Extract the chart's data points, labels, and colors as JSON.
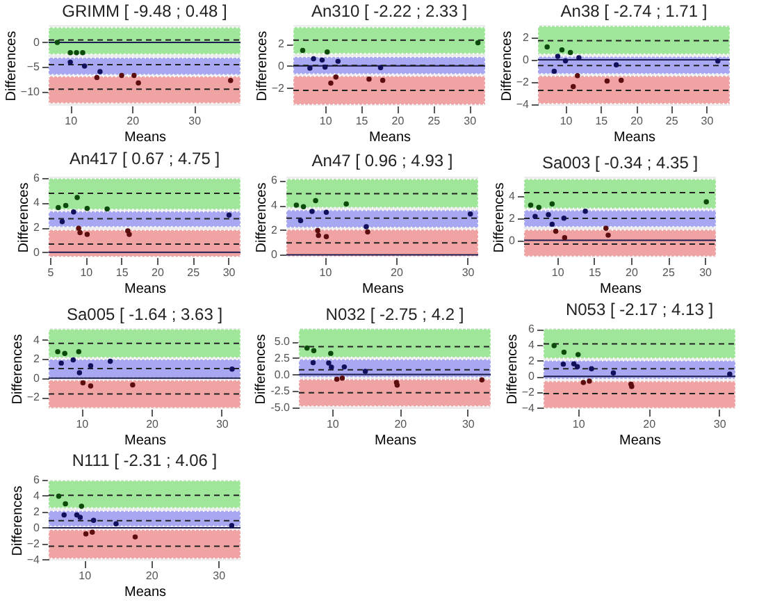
{
  "chart_data": [
    {
      "type": "scatter",
      "title": "GRIMM [ -9.48 ; 0.48 ]",
      "xlabel": "Means",
      "ylabel": "Differences",
      "marker": "circle",
      "xlim": [
        6.5,
        37.5
      ],
      "xticks": [
        10,
        20,
        30
      ],
      "ylim": [
        -12.8,
        3.5
      ],
      "yticks": [
        -10,
        -5,
        0
      ],
      "series": [
        {
          "color": "#0b4a0b",
          "x": [
            7.9,
            10,
            11,
            12
          ],
          "values": [
            0,
            -2.1,
            -2.1,
            -2.1
          ]
        },
        {
          "color": "#10105c",
          "x": [
            10,
            12.3,
            14.8
          ],
          "values": [
            -4.0,
            -4.8,
            -5.9
          ]
        },
        {
          "color": "#5c0e0e",
          "x": [
            14.3,
            18.3,
            20.3,
            21,
            35.9
          ],
          "values": [
            -7.1,
            -6.7,
            -6.7,
            -8.2,
            -7.7
          ]
        }
      ],
      "bands": [
        {
          "axis": "y",
          "from": -2.4,
          "to": 3.0,
          "color": "#9fe69b"
        },
        {
          "axis": "y",
          "from": -6.55,
          "to": -3.1,
          "color": "#a8a8f2"
        },
        {
          "axis": "y",
          "from": -12.3,
          "to": -6.9,
          "color": "#f0a3a3"
        }
      ],
      "ref_lines": [
        {
          "axis": "y",
          "value": 0,
          "color": "#1c1c50",
          "line_style": "solid"
        },
        {
          "axis": "y",
          "value": 0.48,
          "color": "#222222",
          "line_style": "dashed"
        },
        {
          "axis": "y",
          "value": -4.5,
          "color": "#222222",
          "line_style": "dashed"
        },
        {
          "axis": "y",
          "value": -9.48,
          "color": "#222222",
          "line_style": "dashed"
        }
      ]
    },
    {
      "type": "scatter",
      "title": "An310 [ -2.22 ; 2.33 ]",
      "xlabel": "Means",
      "ylabel": "Differences",
      "marker": "circle",
      "xlim": [
        5.6,
        32.2
      ],
      "xticks": [
        10,
        15,
        20,
        25,
        30
      ],
      "ylim": [
        -3.6,
        3.7
      ],
      "yticks": [
        -2,
        0,
        2
      ],
      "series": [
        {
          "color": "#0b4a0b",
          "x": [
            6.9,
            10.3,
            31.2
          ],
          "values": [
            1.4,
            1.26,
            2.1
          ]
        },
        {
          "color": "#10105c",
          "x": [
            7.9,
            8.4,
            9.6,
            10,
            11.8,
            17.7
          ],
          "values": [
            -0.2,
            0.65,
            0.53,
            -0.1,
            0.42,
            -0.15
          ]
        },
        {
          "color": "#5c0e0e",
          "x": [
            10.8,
            11.5,
            16.1,
            18.0
          ],
          "values": [
            -1.56,
            -1.0,
            -1.2,
            -1.3
          ]
        }
      ],
      "bands": [
        {
          "axis": "y",
          "from": 1.1,
          "to": 3.5,
          "color": "#9fe69b"
        },
        {
          "axis": "y",
          "from": -0.73,
          "to": 0.8,
          "color": "#a8a8f2"
        },
        {
          "axis": "y",
          "from": -3.5,
          "to": -0.92,
          "color": "#f0a3a3"
        }
      ],
      "ref_lines": [
        {
          "axis": "y",
          "value": 0,
          "color": "#1c1c50",
          "line_style": "solid"
        },
        {
          "axis": "y",
          "value": 2.33,
          "color": "#222222",
          "line_style": "dashed"
        },
        {
          "axis": "y",
          "value": 0.055,
          "color": "#222222",
          "line_style": "dashed"
        },
        {
          "axis": "y",
          "value": -2.22,
          "color": "#222222",
          "line_style": "dashed"
        }
      ]
    },
    {
      "type": "scatter",
      "title": "An38 [ -2.74 ; 1.71 ]",
      "xlabel": "Means",
      "ylabel": "Differences",
      "marker": "circle",
      "xlim": [
        6.1,
        33.3
      ],
      "xticks": [
        10,
        15,
        20,
        25,
        30
      ],
      "ylim": [
        -4.1,
        3.1
      ],
      "yticks": [
        -4,
        -2,
        0,
        2
      ],
      "series": [
        {
          "color": "#0b4a0b",
          "x": [
            7.4,
            9.5,
            10.7
          ],
          "values": [
            1.15,
            0.88,
            0.65
          ]
        },
        {
          "color": "#10105c",
          "x": [
            8.4,
            8.9,
            10,
            11.9,
            17.2,
            31.6
          ],
          "values": [
            -1.03,
            0.3,
            -0.1,
            0.19,
            -0.46,
            -0.11
          ]
        },
        {
          "color": "#5c0e0e",
          "x": [
            11.1,
            11.7,
            15.9,
            17.9
          ],
          "values": [
            -2.4,
            -1.41,
            -1.9,
            -1.83
          ]
        }
      ],
      "bands": [
        {
          "axis": "y",
          "from": 0.5,
          "to": 3.0,
          "color": "#9fe69b"
        },
        {
          "axis": "y",
          "from": -1.26,
          "to": 0.27,
          "color": "#a8a8f2"
        },
        {
          "axis": "y",
          "from": -3.93,
          "to": -1.45,
          "color": "#f0a3a3"
        }
      ],
      "ref_lines": [
        {
          "axis": "y",
          "value": 0,
          "color": "#1c1c50",
          "line_style": "solid"
        },
        {
          "axis": "y",
          "value": 1.71,
          "color": "#222222",
          "line_style": "dashed"
        },
        {
          "axis": "y",
          "value": -0.515,
          "color": "#222222",
          "line_style": "dashed"
        },
        {
          "axis": "y",
          "value": -2.74,
          "color": "#222222",
          "line_style": "dashed"
        }
      ]
    },
    {
      "type": "scatter",
      "title": "An417 [ 0.67 ; 4.75 ]",
      "xlabel": "Means",
      "ylabel": "Differences",
      "marker": "circle",
      "xlim": [
        4.8,
        31.7
      ],
      "xticks": [
        5,
        10,
        15,
        20,
        25,
        30
      ],
      "ylim": [
        -0.4,
        6.1
      ],
      "yticks": [
        0,
        2,
        4,
        6
      ],
      "series": [
        {
          "color": "#0b4a0b",
          "x": [
            6.15,
            7.2,
            8.8,
            10.2,
            13.0
          ],
          "values": [
            3.6,
            3.78,
            4.42,
            3.53,
            3.5
          ]
        },
        {
          "color": "#10105c",
          "x": [
            6.7,
            8.3,
            30.1
          ],
          "values": [
            2.47,
            3.25,
            3.0
          ]
        },
        {
          "color": "#5c0e0e",
          "x": [
            9.0,
            9.2,
            10.2,
            15.9,
            16.1
          ],
          "values": [
            1.94,
            1.59,
            1.45,
            1.73,
            1.45
          ]
        }
      ],
      "bands": [
        {
          "axis": "y",
          "from": 3.45,
          "to": 5.94,
          "color": "#9fe69b"
        },
        {
          "axis": "y",
          "from": 2.05,
          "to": 3.3,
          "color": "#a8a8f2"
        },
        {
          "axis": "y",
          "from": -0.35,
          "to": 1.8,
          "color": "#f0a3a3"
        }
      ],
      "ref_lines": [
        {
          "axis": "y",
          "value": 0,
          "color": "#1c1c50",
          "line_style": "solid"
        },
        {
          "axis": "y",
          "value": 4.75,
          "color": "#222222",
          "line_style": "dashed"
        },
        {
          "axis": "y",
          "value": 2.71,
          "color": "#222222",
          "line_style": "dashed"
        },
        {
          "axis": "y",
          "value": 0.67,
          "color": "#222222",
          "line_style": "dashed"
        }
      ]
    },
    {
      "type": "scatter",
      "title": "An47 [ 0.96 ; 4.93 ]",
      "xlabel": "Means",
      "ylabel": "Differences",
      "marker": "circle",
      "xlim": [
        4.6,
        31.5
      ],
      "xticks": [
        10,
        20,
        30
      ],
      "ylim": [
        -0.2,
        6.3
      ],
      "yticks": [
        0,
        2,
        4,
        6
      ],
      "series": [
        {
          "color": "#0b4a0b",
          "x": [
            6.0,
            7.0,
            8.7,
            13.0
          ],
          "values": [
            4.0,
            3.88,
            4.37,
            4.1
          ]
        },
        {
          "color": "#10105c",
          "x": [
            6.6,
            8.2,
            10.2,
            15.8,
            30.4
          ],
          "values": [
            2.76,
            3.5,
            3.43,
            2.27,
            3.29
          ]
        },
        {
          "color": "#5c0e0e",
          "x": [
            9.0,
            9.1,
            10.2,
            16.0
          ],
          "values": [
            1.96,
            1.57,
            1.47,
            1.85
          ]
        }
      ],
      "bands": [
        {
          "axis": "y",
          "from": 3.8,
          "to": 6.1,
          "color": "#9fe69b"
        },
        {
          "axis": "y",
          "from": 2.2,
          "to": 3.6,
          "color": "#a8a8f2"
        },
        {
          "axis": "y",
          "from": -0.1,
          "to": 2.03,
          "color": "#f0a3a3"
        }
      ],
      "ref_lines": [
        {
          "axis": "y",
          "value": 0,
          "color": "#1c1c50",
          "line_style": "solid"
        },
        {
          "axis": "y",
          "value": 4.93,
          "color": "#222222",
          "line_style": "dashed"
        },
        {
          "axis": "y",
          "value": 2.945,
          "color": "#222222",
          "line_style": "dashed"
        },
        {
          "axis": "y",
          "value": 0.96,
          "color": "#222222",
          "line_style": "dashed"
        }
      ]
    },
    {
      "type": "scatter",
      "title": "Sa003 [ -0.34 ; 4.35 ]",
      "xlabel": "Means",
      "ylabel": "Differences",
      "marker": "circle",
      "xlim": [
        5.5,
        31.5
      ],
      "xticks": [
        10,
        15,
        20,
        25,
        30
      ],
      "ylim": [
        -1.55,
        5.8
      ],
      "yticks": [
        0,
        2,
        4
      ],
      "series": [
        {
          "color": "#0b4a0b",
          "x": [
            6.4,
            7.5,
            9.3,
            30.2
          ],
          "values": [
            3.2,
            3.0,
            3.32,
            3.5
          ]
        },
        {
          "color": "#10105c",
          "x": [
            7.0,
            8.8,
            9.3,
            10.9,
            13.8
          ],
          "values": [
            2.17,
            2.33,
            1.46,
            2.02,
            2.65
          ]
        },
        {
          "color": "#5c0e0e",
          "x": [
            9.8,
            11.0,
            16.6,
            16.9
          ],
          "values": [
            0.83,
            0.24,
            1.1,
            0.47
          ]
        }
      ],
      "bands": [
        {
          "axis": "y",
          "from": 2.9,
          "to": 5.57,
          "color": "#9fe69b"
        },
        {
          "axis": "y",
          "from": 1.23,
          "to": 2.73,
          "color": "#a8a8f2"
        },
        {
          "axis": "y",
          "from": -1.46,
          "to": 0.95,
          "color": "#f0a3a3"
        }
      ],
      "ref_lines": [
        {
          "axis": "y",
          "value": 0,
          "color": "#1c1c50",
          "line_style": "solid"
        },
        {
          "axis": "y",
          "value": 4.35,
          "color": "#222222",
          "line_style": "dashed"
        },
        {
          "axis": "y",
          "value": 2.005,
          "color": "#222222",
          "line_style": "dashed"
        },
        {
          "axis": "y",
          "value": -0.34,
          "color": "#222222",
          "line_style": "dashed"
        }
      ]
    },
    {
      "type": "scatter",
      "title": "Sa005 [ -1.64 ; 3.63 ]",
      "xlabel": "Means",
      "ylabel": "Differences",
      "marker": "circle",
      "xlim": [
        5.3,
        32.7
      ],
      "xticks": [
        10,
        20,
        30
      ],
      "ylim": [
        -3.2,
        5.2
      ],
      "yticks": [
        -2,
        0,
        2,
        4
      ],
      "series": [
        {
          "color": "#0b4a0b",
          "x": [
            6.6,
            7.6,
            9.6
          ],
          "values": [
            2.76,
            2.57,
            2.76
          ]
        },
        {
          "color": "#10105c",
          "x": [
            7.1,
            8.8,
            9.7,
            11.3,
            14.1,
            31.5
          ],
          "values": [
            1.57,
            1.9,
            0.57,
            1.29,
            1.76,
            0.95
          ]
        },
        {
          "color": "#5c0e0e",
          "x": [
            10.2,
            11.3,
            17.3
          ],
          "values": [
            -0.48,
            -0.81,
            -0.71
          ]
        }
      ],
      "bands": [
        {
          "axis": "y",
          "from": 2.14,
          "to": 5.1,
          "color": "#9fe69b"
        },
        {
          "axis": "y",
          "from": 0,
          "to": 1.95,
          "color": "#a8a8f2"
        },
        {
          "axis": "y",
          "from": -3.1,
          "to": -0.24,
          "color": "#f0a3a3"
        }
      ],
      "ref_lines": [
        {
          "axis": "y",
          "value": 0,
          "color": "#1c1c50",
          "line_style": "solid"
        },
        {
          "axis": "y",
          "value": 3.63,
          "color": "#222222",
          "line_style": "dashed"
        },
        {
          "axis": "y",
          "value": 0.995,
          "color": "#222222",
          "line_style": "dashed"
        },
        {
          "axis": "y",
          "value": -1.64,
          "color": "#222222",
          "line_style": "dashed"
        }
      ]
    },
    {
      "type": "scatter",
      "title": "N032 [ -2.75 ; 4.2 ]",
      "xlabel": "Means",
      "ylabel": "Differences",
      "marker": "circle",
      "xlim": [
        5.1,
        33.4
      ],
      "xticks": [
        10,
        20,
        30
      ],
      "ylim": [
        -5.2,
        7.0
      ],
      "yticks": [
        {
          "value": -5,
          "label": "-5.0"
        },
        {
          "value": -2.5,
          "label": "-2.5"
        },
        {
          "value": 0,
          "label": "0.0"
        },
        {
          "value": 2.5,
          "label": "2.5"
        },
        {
          "value": 5,
          "label": "5.0"
        }
      ],
      "series": [
        {
          "color": "#0b4a0b",
          "x": [
            6.3,
            7.3,
            9.8
          ],
          "values": [
            4.0,
            3.6,
            3.2
          ]
        },
        {
          "color": "#10105c",
          "x": [
            7.2,
            9.5,
            9.9,
            11.8,
            14.9
          ],
          "values": [
            1.8,
            1.75,
            1.1,
            1.15,
            0.47
          ]
        },
        {
          "color": "#5c0e0e",
          "x": [
            10.7,
            11.5,
            19.5,
            19.6,
            32.1
          ],
          "values": [
            -0.7,
            -0.55,
            -1.2,
            -1.6,
            -0.8
          ]
        }
      ],
      "bands": [
        {
          "axis": "y",
          "from": 2.6,
          "to": 6.9,
          "color": "#9fe69b"
        },
        {
          "axis": "y",
          "from": -0.4,
          "to": 2.3,
          "color": "#a8a8f2"
        },
        {
          "axis": "y",
          "from": -4.8,
          "to": -0.74,
          "color": "#f0a3a3"
        }
      ],
      "ref_lines": [
        {
          "axis": "y",
          "value": 0,
          "color": "#1c1c50",
          "line_style": "solid"
        },
        {
          "axis": "y",
          "value": 4.2,
          "color": "#222222",
          "line_style": "dashed"
        },
        {
          "axis": "y",
          "value": 0.725,
          "color": "#222222",
          "line_style": "dashed"
        },
        {
          "axis": "y",
          "value": -2.75,
          "color": "#222222",
          "line_style": "dashed"
        }
      ]
    },
    {
      "type": "scatter",
      "title": "N053 [ -2.17 ; 4.13 ]",
      "xlabel": "Means",
      "ylabel": "Differences",
      "marker": "circle",
      "xlim": [
        5.1,
        32.3
      ],
      "xticks": [
        10,
        20,
        30
      ],
      "ylim": [
        -4.1,
        6.1
      ],
      "yticks": [
        -4,
        -2,
        0,
        2,
        4,
        6
      ],
      "series": [
        {
          "color": "#0b4a0b",
          "x": [
            6.6,
            8.0,
            10.0
          ],
          "values": [
            3.9,
            3.06,
            2.77
          ]
        },
        {
          "color": "#10105c",
          "x": [
            7.9,
            9.4,
            9.9,
            11.9,
            15.0,
            31.5
          ],
          "values": [
            1.56,
            1.6,
            1.25,
            0.98,
            0.46,
            0.29
          ]
        },
        {
          "color": "#5c0e0e",
          "x": [
            10.75,
            11.6,
            17.5,
            17.6
          ],
          "values": [
            -0.75,
            -0.58,
            -0.98,
            -1.27
          ]
        }
      ],
      "bands": [
        {
          "axis": "y",
          "from": 2.3,
          "to": 6.0,
          "color": "#9fe69b"
        },
        {
          "axis": "y",
          "from": -0.3,
          "to": 2.0,
          "color": "#a8a8f2"
        },
        {
          "axis": "y",
          "from": -4.0,
          "to": -0.6,
          "color": "#f0a3a3"
        }
      ],
      "ref_lines": [
        {
          "axis": "y",
          "value": 0,
          "color": "#1c1c50",
          "line_style": "solid"
        },
        {
          "axis": "y",
          "value": 4.13,
          "color": "#222222",
          "line_style": "dashed"
        },
        {
          "axis": "y",
          "value": 0.98,
          "color": "#222222",
          "line_style": "dashed"
        },
        {
          "axis": "y",
          "value": -2.17,
          "color": "#222222",
          "line_style": "dashed"
        }
      ]
    },
    {
      "type": "scatter",
      "title": "N111 [ -2.31 ; 4.06 ]",
      "xlabel": "Means",
      "ylabel": "Differences",
      "marker": "circle",
      "xlim": [
        4.7,
        33.3
      ],
      "xticks": [
        10,
        20,
        30
      ],
      "ylim": [
        -4.1,
        6.0
      ],
      "yticks": [
        -4,
        -2,
        0,
        2,
        4,
        6
      ],
      "series": [
        {
          "color": "#0b4a0b",
          "x": [
            6.2,
            7.2,
            9.6
          ],
          "values": [
            3.96,
            3.0,
            2.7
          ]
        },
        {
          "color": "#10105c",
          "x": [
            7.0,
            8.9,
            9.4,
            11.4,
            14.75,
            32.0
          ],
          "values": [
            1.6,
            1.6,
            1.3,
            0.93,
            0.5,
            0.27
          ]
        },
        {
          "color": "#5c0e0e",
          "x": [
            10.25,
            11.2,
            17.6
          ],
          "values": [
            -0.77,
            -0.55,
            -1.15
          ]
        }
      ],
      "bands": [
        {
          "axis": "y",
          "from": 2.47,
          "to": 5.9,
          "color": "#9fe69b"
        },
        {
          "axis": "y",
          "from": 0.16,
          "to": 2.1,
          "color": "#a8a8f2"
        },
        {
          "axis": "y",
          "from": -3.85,
          "to": -0.27,
          "color": "#f0a3a3"
        }
      ],
      "ref_lines": [
        {
          "axis": "y",
          "value": 0,
          "color": "#1c1c50",
          "line_style": "solid"
        },
        {
          "axis": "y",
          "value": 4.06,
          "color": "#222222",
          "line_style": "dashed"
        },
        {
          "axis": "y",
          "value": 0.875,
          "color": "#222222",
          "line_style": "dashed"
        },
        {
          "axis": "y",
          "value": -2.31,
          "color": "#222222",
          "line_style": "dashed"
        }
      ]
    }
  ]
}
